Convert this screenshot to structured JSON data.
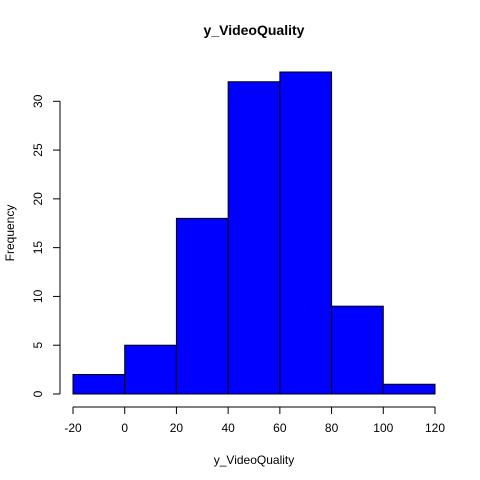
{
  "chart_data": {
    "type": "bar",
    "title": "y_VideoQuality",
    "xlabel": "y_VideoQuality",
    "ylabel": "Frequency",
    "bins": [
      {
        "start": -20,
        "end": 0,
        "count": 2
      },
      {
        "start": 0,
        "end": 20,
        "count": 5
      },
      {
        "start": 20,
        "end": 40,
        "count": 18
      },
      {
        "start": 40,
        "end": 60,
        "count": 32
      },
      {
        "start": 60,
        "end": 80,
        "count": 33
      },
      {
        "start": 80,
        "end": 100,
        "count": 9
      },
      {
        "start": 100,
        "end": 120,
        "count": 1
      }
    ],
    "xlim": [
      -20,
      120
    ],
    "ylim": [
      0,
      33
    ],
    "x_ticks": [
      -20,
      0,
      20,
      40,
      60,
      80,
      100,
      120
    ],
    "y_ticks": [
      0,
      5,
      10,
      15,
      20,
      25,
      30
    ],
    "bar_color": "#0000ff",
    "grid": false,
    "legend": "none"
  }
}
